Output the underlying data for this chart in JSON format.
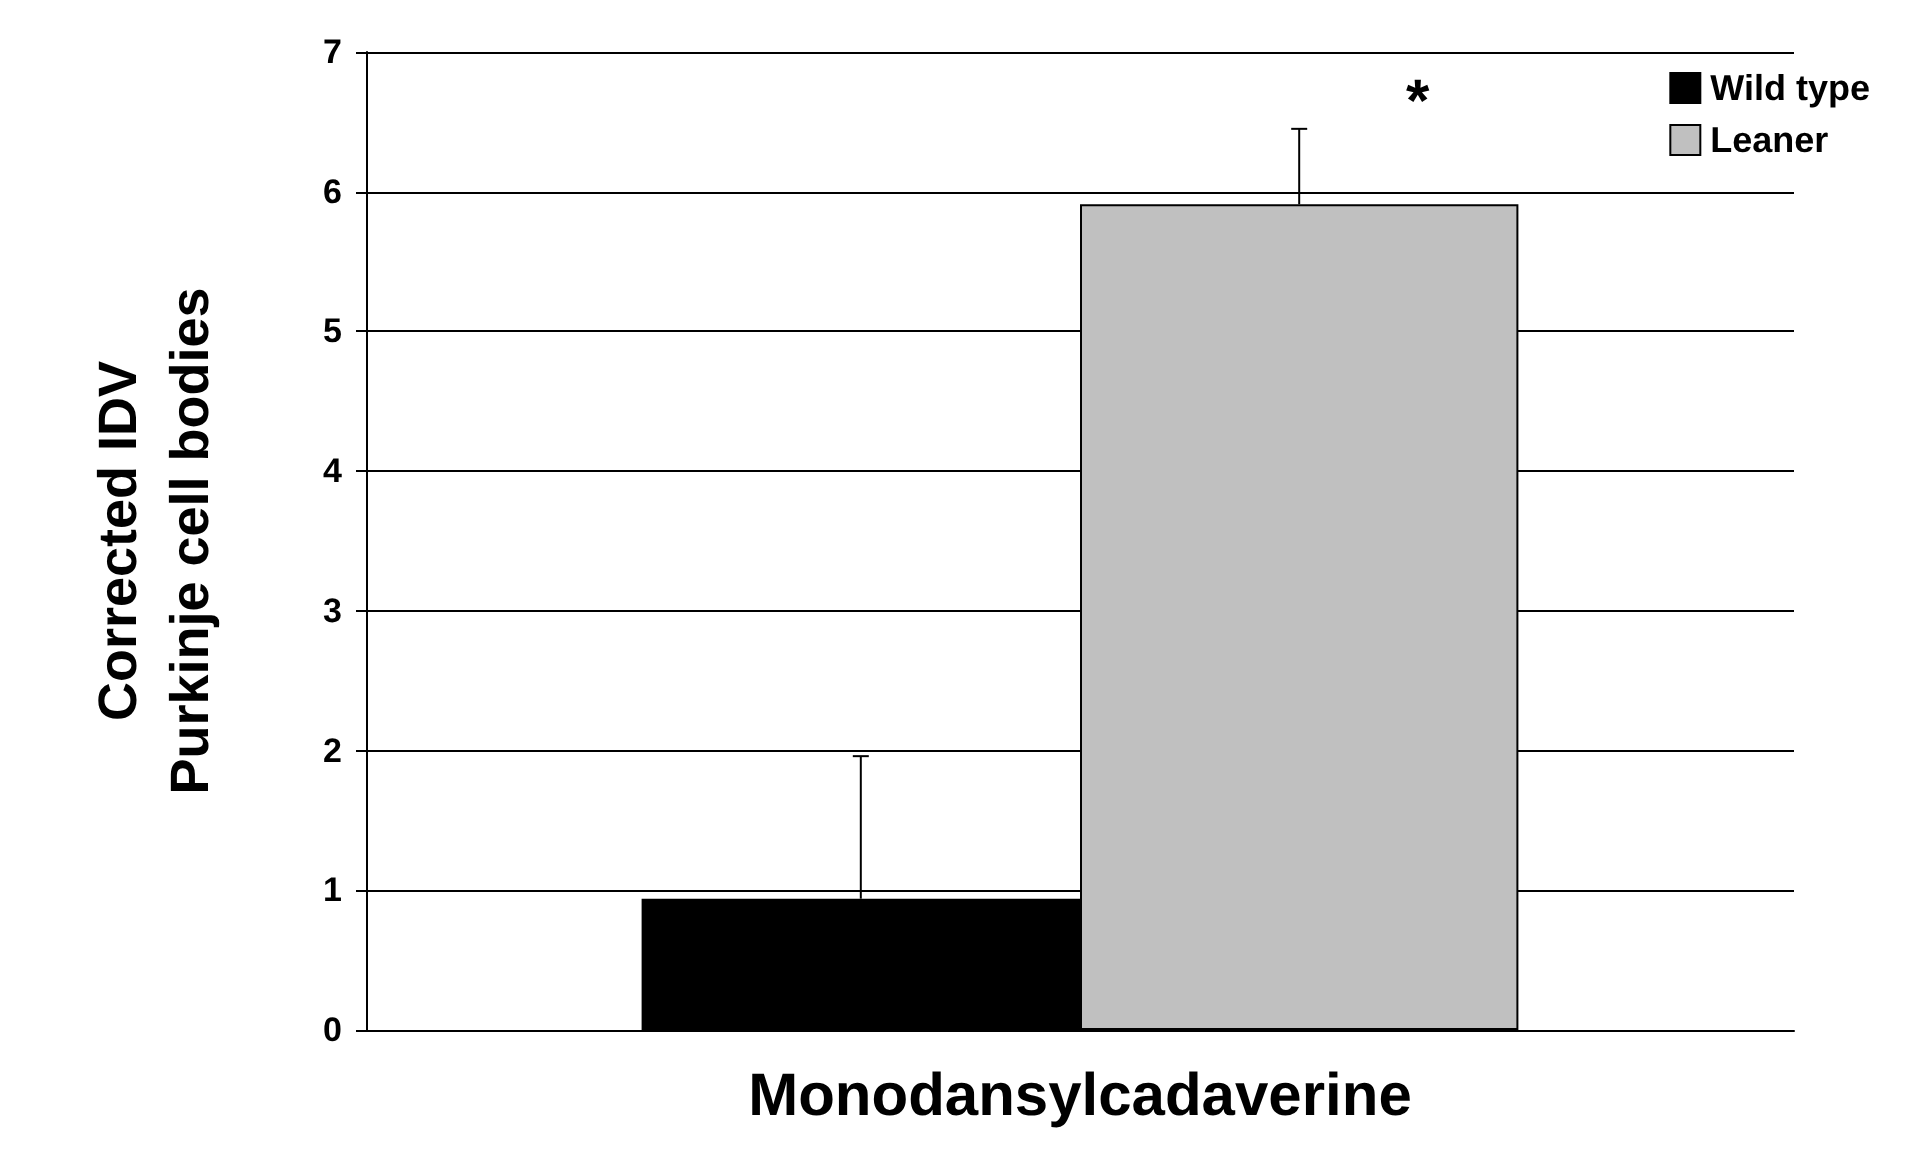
{
  "chart_data": {
    "type": "bar",
    "ylabel": "Corrected IDV\nPurkinje cell bodies",
    "categories": [
      "Monodansylcadaverine"
    ],
    "series": [
      {
        "name": "Wild type",
        "color": "#000000",
        "values": [
          0.94
        ],
        "errors": [
          [
            0.94,
            1.96
          ]
        ]
      },
      {
        "name": "Leaner",
        "color": "#c0c0c0",
        "values": [
          5.91
        ],
        "errors": [
          [
            5.91,
            6.45
          ]
        ]
      }
    ],
    "ylim": [
      0,
      7
    ],
    "yticks": [
      0,
      1,
      2,
      3,
      4,
      5,
      6,
      7
    ],
    "grid": "y",
    "legend": "top right",
    "annotations": [
      "*"
    ]
  }
}
